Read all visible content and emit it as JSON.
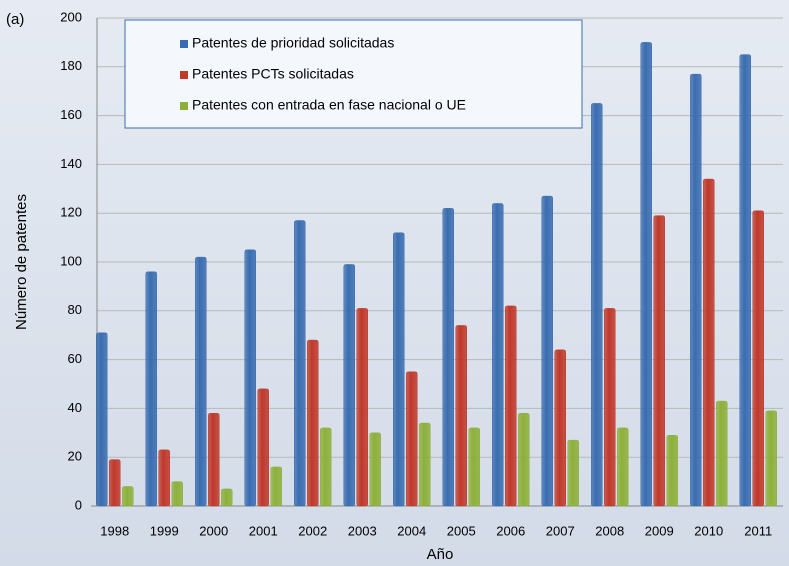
{
  "chart_data": {
    "type": "bar",
    "annotation": "(a)",
    "xlabel": "Año",
    "ylabel": "Número de patentes",
    "categories": [
      "1998",
      "1999",
      "2000",
      "2001",
      "2002",
      "2003",
      "2004",
      "2005",
      "2006",
      "2007",
      "2008",
      "2009",
      "2010",
      "2011"
    ],
    "series": [
      {
        "name": "Patentes de prioridad solicitadas",
        "color": "#3a6db0",
        "values": [
          71,
          96,
          102,
          105,
          117,
          99,
          112,
          122,
          124,
          127,
          165,
          190,
          177,
          185
        ]
      },
      {
        "name": "Patentes PCTs solicitadas",
        "color": "#c0392b",
        "values": [
          19,
          23,
          38,
          48,
          68,
          81,
          55,
          74,
          82,
          64,
          81,
          119,
          134,
          121
        ]
      },
      {
        "name": "Patentes con entrada en fase nacional o UE",
        "color": "#8db03a",
        "values": [
          8,
          10,
          7,
          16,
          32,
          30,
          34,
          32,
          38,
          27,
          32,
          29,
          43,
          39
        ]
      }
    ],
    "ylim": [
      0,
      200
    ],
    "yticks": [
      0,
      20,
      40,
      60,
      80,
      100,
      120,
      140,
      160,
      180,
      200
    ],
    "grid": true,
    "legend": "top-left"
  }
}
